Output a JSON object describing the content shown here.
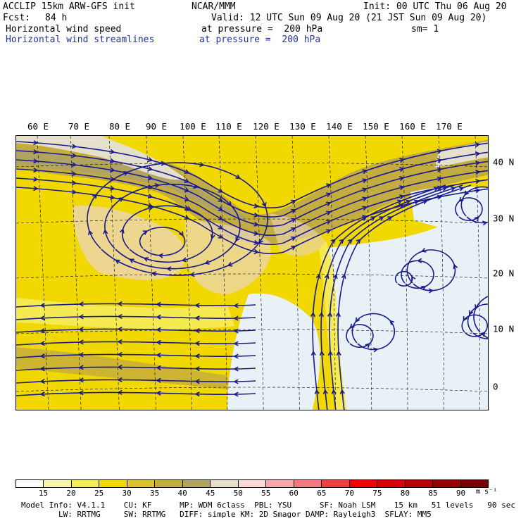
{
  "header": {
    "model_title": "ACCLIP 15km ARW-GFS init",
    "center": "NCAR/MMM",
    "init": "Init: 00 UTC Thu 06 Aug 20",
    "fcst_label": "Fcst:",
    "fcst_value": "84 h",
    "valid": "Valid: 12 UTC Sun 09 Aug 20 (21 JST Sun 09 Aug 20)",
    "field1_name": "Horizontal wind speed",
    "field1_level": "at pressure =  200 hPa",
    "field1_smooth": "sm= 1",
    "field2_name": "Horizontal wind streamlines",
    "field2_level": "at pressure =  200 hPa"
  },
  "map": {
    "lon_labels": [
      "60 E",
      "70 E",
      "80 E",
      "90 E",
      "100 E",
      "110 E",
      "120 E",
      "130 E",
      "140 E",
      "150 E",
      "160 E",
      "170 E"
    ],
    "lat_labels": [
      "40 N",
      "30 N",
      "20 N",
      "10 N",
      "0"
    ],
    "fill_colors": {
      "lt15": "#ffffff",
      "c15_20": "#f8f6a8",
      "c20_25": "#f5ec5a",
      "c25_30": "#f1d800",
      "c30_35": "#dcc230",
      "c35_40": "#c4ad40",
      "c40_45": "#b0a460",
      "c45_50": "#e4e0cc",
      "terrain": "#ead6c0",
      "streamline": "#1a1a8c"
    },
    "regions": [
      "speed-field",
      "jet-core-north",
      "tropical-low-speed-zone",
      "terrain-mask",
      "streamlines"
    ]
  },
  "colorbar": {
    "labels": [
      "15",
      "20",
      "25",
      "30",
      "35",
      "40",
      "45",
      "50",
      "55",
      "60",
      "65",
      "70",
      "75",
      "80",
      "85",
      "90"
    ],
    "unit": "m s⁻¹",
    "colors": [
      "#ffffff",
      "#f8f6a8",
      "#f5ec5a",
      "#f1d800",
      "#dcc230",
      "#c4ad40",
      "#b0a460",
      "#e4e0cc",
      "#ffd8d8",
      "#f8a8a8",
      "#f07a7a",
      "#f04040",
      "#f00000",
      "#d80000",
      "#b80000",
      "#980000",
      "#780000"
    ]
  },
  "footer": {
    "line1": "Model Info: V4.1.1    CU: KF      MP: WDM 6class  PBL: YSU      SF: Noah LSM    15 km   51 levels   90 sec",
    "line2": "        LW: RRTMG     SW: RRTMG   DIFF: simple KM: 2D Smagor DAMP: Rayleigh3  SFLAY: MM5"
  }
}
